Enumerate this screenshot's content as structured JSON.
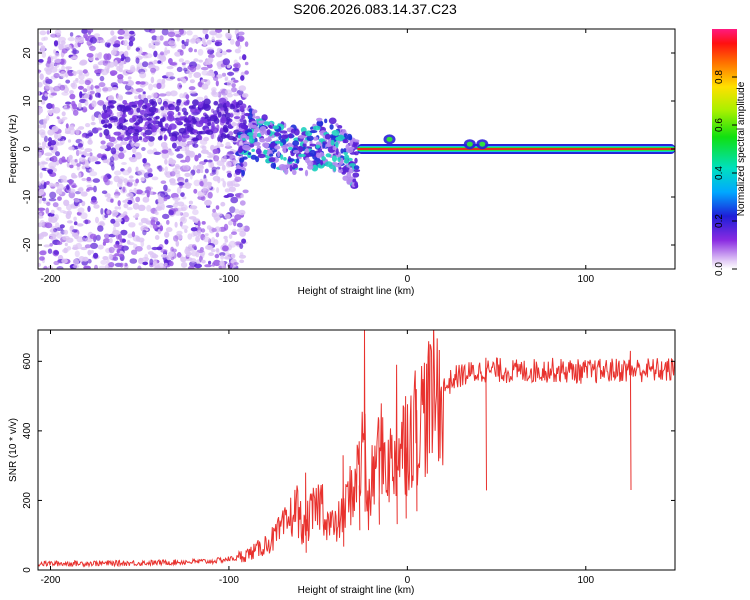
{
  "page_title": "S206.2026.083.14.37.C23",
  "colors": {
    "snr_line": "#e8322e",
    "spectro_low": "#d9b8f0",
    "spectro_mid": "#6a2ed8",
    "line_core": "#e03020",
    "axis": "#000000"
  },
  "chart_data": [
    {
      "type": "heatmap",
      "title": "S206.2026.083.14.37.C23",
      "xlabel": "Height of straight line (km)",
      "ylabel": "Frequency (Hz)",
      "xlim": [
        -207,
        150
      ],
      "ylim": [
        -25,
        25
      ],
      "xticks": [
        -200,
        -100,
        0,
        100
      ],
      "xtick_labels": [
        "-200",
        "-100",
        "0",
        "100"
      ],
      "yticks": [
        -20,
        -10,
        0,
        10,
        20
      ],
      "ytick_labels": [
        "-20",
        "-10",
        "0",
        "10",
        "20"
      ],
      "colorbar": {
        "label": "Normalized spectral amplitude",
        "range": [
          0,
          1
        ],
        "ticks": [
          0.0,
          0.2,
          0.4,
          0.6,
          0.8
        ],
        "tick_labels": [
          "0.0",
          "0.2",
          "0.4",
          "0.6",
          "0.8"
        ]
      },
      "features": {
        "noise_region_km": [
          -207,
          -95
        ],
        "transition_region_km": [
          -95,
          -28
        ],
        "stable_line_km": [
          -28,
          150
        ],
        "stable_line_frequency_hz": 0,
        "transition_center_frequency_hz": [
          [
            -90,
            4
          ],
          [
            -75,
            1
          ],
          [
            -60,
            -1
          ],
          [
            -45,
            2
          ],
          [
            -30,
            -3
          ],
          [
            -10,
            1
          ],
          [
            0,
            0
          ]
        ]
      }
    },
    {
      "type": "line",
      "xlabel": "Height of straight line (km)",
      "ylabel": "SNR (10 * v/v)",
      "xlim": [
        -207,
        150
      ],
      "ylim": [
        0,
        690
      ],
      "xticks": [
        -200,
        -100,
        0,
        100
      ],
      "xtick_labels": [
        "-200",
        "-100",
        "0",
        "100"
      ],
      "yticks": [
        0,
        200,
        400,
        600
      ],
      "ytick_labels": [
        "0",
        "200",
        "400",
        "600"
      ],
      "series": [
        {
          "name": "SNR",
          "x": [
            -207,
            -150,
            -110,
            -95,
            -85,
            -75,
            -68,
            -62,
            -58,
            -55,
            -52,
            -48,
            -45,
            -40,
            -35,
            -30,
            -26,
            -24,
            -22,
            -20,
            -17,
            -14,
            -10,
            -6,
            -2,
            2,
            6,
            10,
            14,
            18,
            22,
            26,
            30,
            40,
            50,
            60,
            80,
            100,
            120,
            140,
            150
          ],
          "values": [
            18,
            20,
            25,
            35,
            55,
            90,
            130,
            180,
            110,
            150,
            170,
            200,
            140,
            120,
            180,
            240,
            300,
            420,
            150,
            250,
            320,
            340,
            300,
            330,
            360,
            400,
            430,
            460,
            490,
            510,
            530,
            550,
            560,
            570,
            575,
            570,
            575,
            570,
            575,
            575,
            575
          ],
          "spikes": [
            [
              -24,
              690
            ],
            [
              -57,
              280
            ],
            [
              -36,
              330
            ],
            [
              -27,
              370
            ],
            [
              -16,
              430
            ],
            [
              -6,
              590
            ],
            [
              -1,
              500
            ],
            [
              5,
              520
            ],
            [
              44,
              610
            ],
            [
              125,
              630
            ]
          ]
        }
      ]
    }
  ]
}
